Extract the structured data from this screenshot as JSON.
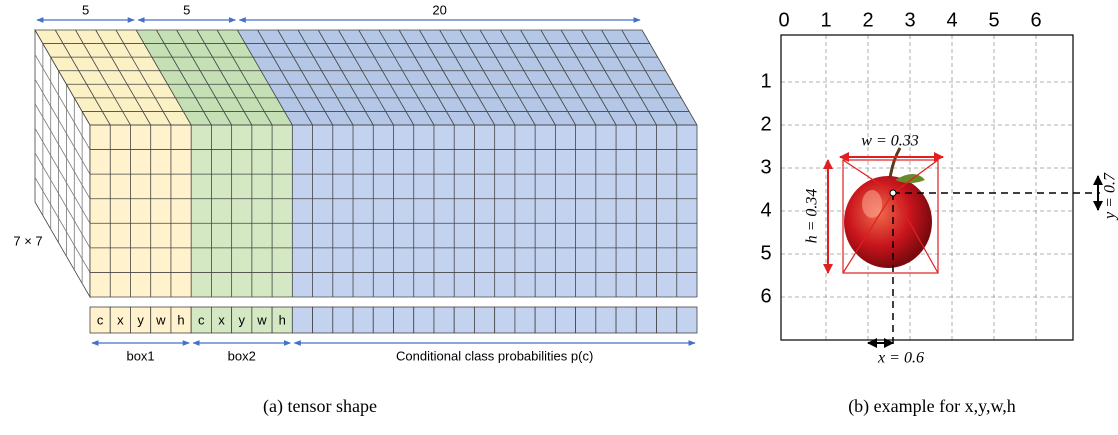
{
  "tensor": {
    "top_labels": [
      "5",
      "5",
      "20"
    ],
    "depth_label": "7 × 7",
    "cell_labels": [
      "c",
      "x",
      "y",
      "w",
      "h",
      "c",
      "x",
      "y",
      "w",
      "h"
    ],
    "groups": [
      "box1",
      "box2",
      "Conditional class probabilities p(c)"
    ],
    "caption": "(a) tensor shape"
  },
  "example": {
    "column_labels": [
      "0",
      "1",
      "2",
      "3",
      "4",
      "5",
      "6"
    ],
    "row_labels": [
      "1",
      "2",
      "3",
      "4",
      "5",
      "6"
    ],
    "w_label": "w = 0.33",
    "h_label": "h = 0.34",
    "x_label": "x = 0.6",
    "y_label": "y = 0.7",
    "caption": "(b) example for x,y,w,h"
  }
}
